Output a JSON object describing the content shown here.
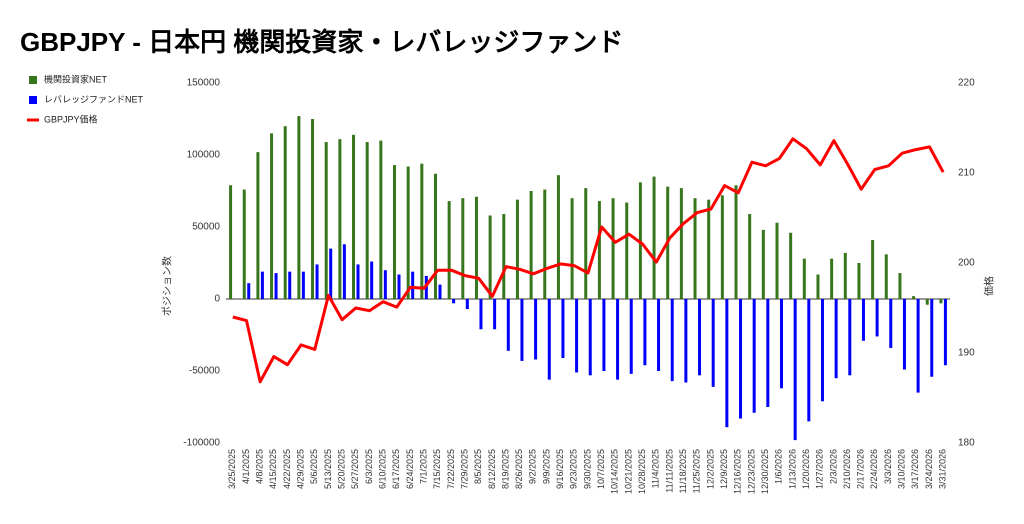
{
  "chart_data": {
    "type": "bar",
    "title": "GBPJPY - 日本円 機関投資家・レバレッジファンド",
    "y_label": "ポジション数",
    "y2_label": "価格",
    "categories": [
      "3/25/2025",
      "4/1/2025",
      "4/8/2025",
      "4/15/2025",
      "4/22/2025",
      "4/29/2025",
      "5/6/2025",
      "5/13/2025",
      "5/20/2025",
      "5/27/2025",
      "6/3/2025",
      "6/10/2025",
      "6/17/2025",
      "6/24/2025",
      "7/1/2025",
      "7/15/2025",
      "7/22/2025",
      "7/29/2025",
      "8/5/2025",
      "8/12/2025",
      "8/19/2025",
      "8/26/2025",
      "9/2/2025",
      "9/9/2025",
      "9/16/2025",
      "9/23/2025",
      "9/30/2025",
      "10/7/2025",
      "10/14/2025",
      "10/21/2025",
      "10/28/2025",
      "11/4/2025",
      "11/11/2025",
      "11/18/2025",
      "11/25/2025",
      "12/2/2025",
      "12/9/2025",
      "12/16/2025",
      "12/23/2025",
      "12/30/2025",
      "1/6/2026",
      "1/13/2026",
      "1/20/2026",
      "1/27/2026",
      "2/3/2026",
      "2/10/2026",
      "2/17/2026",
      "2/24/2026",
      "3/3/2026",
      "3/10/2026",
      "3/17/2026",
      "3/24/2026",
      "3/31/2026"
    ],
    "series": [
      {
        "name": "機関投資家NET",
        "color": "#38761d",
        "type": "bar",
        "values": [
          79000,
          76000,
          102000,
          115000,
          120000,
          127000,
          125000,
          109000,
          111000,
          114000,
          109000,
          110000,
          93000,
          92000,
          94000,
          87000,
          68000,
          70000,
          71000,
          58000,
          59000,
          69000,
          75000,
          76000,
          86000,
          70000,
          77000,
          68000,
          70000,
          67000,
          81000,
          85000,
          78000,
          77000,
          70000,
          69000,
          72000,
          79000,
          59000,
          48000,
          53000,
          46000,
          28000,
          17000,
          28000,
          32000,
          25000,
          41000,
          31000,
          18000,
          2000,
          -4000,
          -3000
        ]
      },
      {
        "name": "レバレッジファンドNET",
        "color": "#0000ff",
        "type": "bar",
        "values": [
          0,
          11000,
          19000,
          18000,
          19000,
          19000,
          24000,
          35000,
          38000,
          24000,
          26000,
          20000,
          17000,
          19000,
          16000,
          10000,
          -3000,
          -7000,
          -21000,
          -21000,
          -36000,
          -43000,
          -42000,
          -56000,
          -41000,
          -51000,
          -53000,
          -50000,
          -56000,
          -52000,
          -46000,
          -50000,
          -57000,
          -58000,
          -53000,
          -61000,
          -89000,
          -83000,
          -79000,
          -75000,
          -62000,
          -98000,
          -85000,
          -71000,
          -55000,
          -53000,
          -29000,
          -26000,
          -34000,
          -49000,
          -65000,
          -54000,
          -46000
        ]
      },
      {
        "name": "GBPJPY価格",
        "color": "#ff0000",
        "type": "line",
        "axis": "y2",
        "values": [
          194.0,
          193.6,
          186.8,
          189.6,
          188.7,
          190.9,
          190.4,
          196.4,
          193.7,
          195.0,
          194.7,
          195.7,
          195.1,
          197.3,
          197.2,
          199.2,
          199.2,
          198.6,
          198.3,
          196.3,
          199.6,
          199.3,
          198.8,
          199.4,
          199.9,
          199.7,
          198.9,
          204.0,
          202.3,
          203.2,
          202.1,
          200.1,
          202.8,
          204.4,
          205.6,
          206.0,
          208.6,
          207.8,
          211.2,
          210.8,
          211.6,
          213.8,
          212.7,
          210.9,
          213.6,
          211.0,
          208.2,
          210.4,
          210.8,
          212.2,
          212.6,
          212.9,
          210.1
        ]
      }
    ],
    "ylim": [
      -100000,
      150000
    ],
    "yticks": [
      -100000,
      -50000,
      0,
      50000,
      100000,
      150000
    ],
    "y2lim": [
      180,
      220
    ],
    "y2ticks": [
      180,
      190,
      200,
      210,
      220
    ],
    "legend": "left"
  }
}
